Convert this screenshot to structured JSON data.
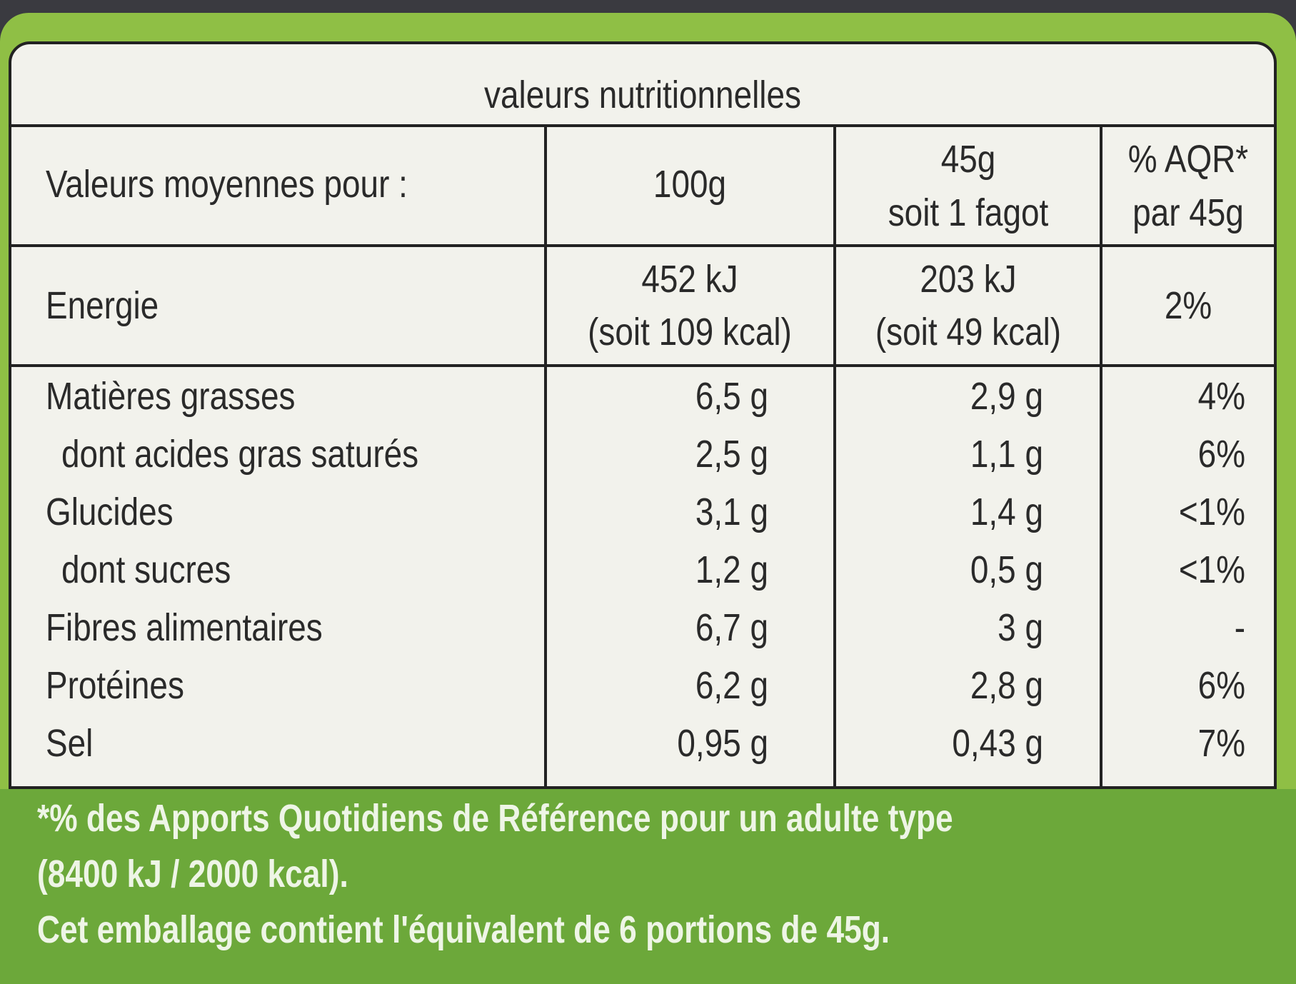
{
  "title": "valeurs nutritionnelles",
  "header": {
    "label": "Valeurs moyennes pour :",
    "per100": "100g",
    "per45": [
      "45g",
      "soit 1 fagot"
    ],
    "aqr": [
      "% AQR*",
      "par 45g"
    ]
  },
  "energy": {
    "label": "Energie",
    "per100": [
      "452 kJ",
      "(soit 109 kcal)"
    ],
    "per45": [
      "203 kJ",
      "(soit 49 kcal)"
    ],
    "aqr": "2%"
  },
  "rows": [
    [
      "Matières grasses",
      "6,5 g",
      "2,9 g",
      "4%"
    ],
    [
      "dont acides gras saturés",
      "2,5 g",
      "1,1 g",
      "6%"
    ],
    [
      "Glucides",
      "3,1 g",
      "1,4 g",
      "<1%"
    ],
    [
      "dont sucres",
      "1,2 g",
      "0,5 g",
      "<1%"
    ],
    [
      "Fibres alimentaires",
      "6,7 g",
      "3 g",
      "-"
    ],
    [
      "Protéines",
      "6,2 g",
      "2,8 g",
      "6%"
    ],
    [
      "Sel",
      "0,95 g",
      "0,43 g",
      "7%"
    ]
  ],
  "footnote": [
    "*% des Apports Quotidiens de Référence pour un adulte type",
    "(8400 kJ / 2000 kcal).",
    "Cet emballage contient l'équivalent de 6 portions de 45g."
  ]
}
